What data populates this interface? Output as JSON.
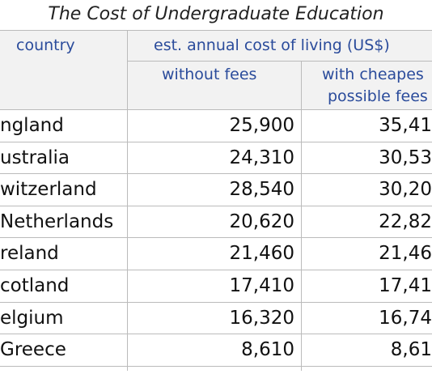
{
  "header": {
    "title": "The Cost of Undergraduate Education"
  },
  "table": {
    "columns": {
      "country": "country",
      "group": "est. annual cost of living (US$)",
      "sub1": "without fees",
      "sub2": [
        "with cheapes",
        "possible fees"
      ]
    },
    "rows": [
      [
        "ngland",
        "25,900",
        "35,41"
      ],
      [
        "ustralia",
        "24,310",
        "30,53"
      ],
      [
        "witzerland",
        "28,540",
        "30,20"
      ],
      [
        "Netherlands",
        "20,620",
        "22,82"
      ],
      [
        "reland",
        "21,460",
        "21,46"
      ],
      [
        "cotland",
        "17,410",
        "17,41"
      ],
      [
        "elgium",
        "16,320",
        "16,74"
      ],
      [
        "Greece",
        "8,610",
        "8,61"
      ]
    ]
  }
}
